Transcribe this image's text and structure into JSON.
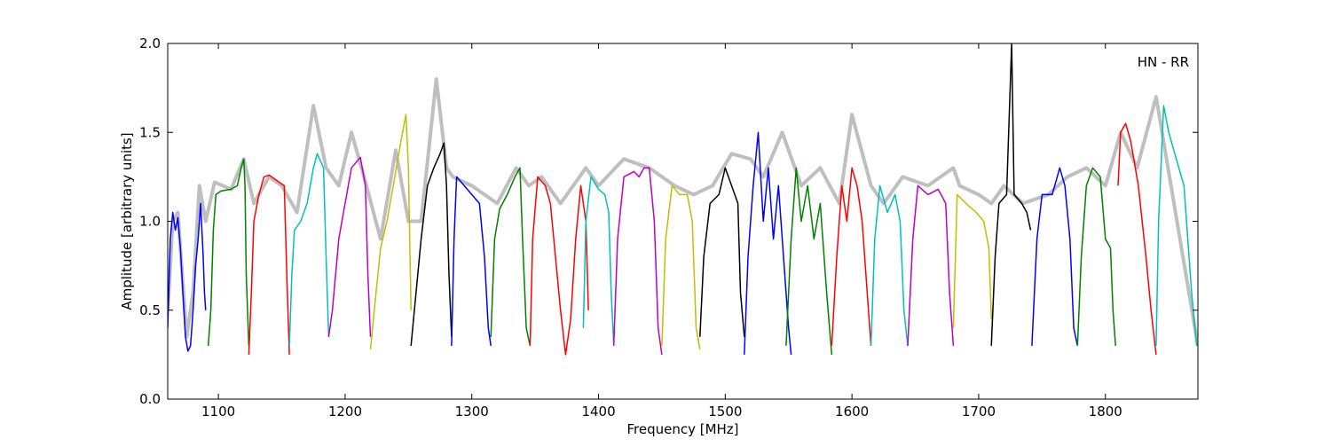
{
  "chart_data": {
    "type": "line",
    "title": "",
    "annotation": "HN - RR",
    "xlabel": "Frequency [MHz]",
    "ylabel": "Amplitude [arbitrary units]",
    "xlim": [
      1060,
      1873
    ],
    "ylim": [
      0.0,
      2.0
    ],
    "xticks": [
      1100,
      1200,
      1300,
      1400,
      1500,
      1600,
      1700,
      1800
    ],
    "yticks": [
      0.0,
      0.5,
      1.0,
      1.5,
      2.0
    ],
    "xtick_labels": [
      "1100",
      "1200",
      "1300",
      "1400",
      "1500",
      "1600",
      "1700",
      "1800"
    ],
    "ytick_labels": [
      "0.0",
      "0.5",
      "1.0",
      "1.5",
      "2.0"
    ],
    "grid": false,
    "colors": {
      "background_trace": "#bfbfbf",
      "blue": "#0000ff",
      "green": "#008000",
      "red": "#ff0000",
      "cyan": "#00bfbf",
      "magenta": "#bf00bf",
      "olive": "#bfbf00",
      "black": "#000000"
    },
    "background_trace": [
      [
        1060,
        0.5
      ],
      [
        1064,
        1.0
      ],
      [
        1068,
        1.05
      ],
      [
        1075,
        0.35
      ],
      [
        1080,
        0.6
      ],
      [
        1085,
        1.2
      ],
      [
        1090,
        1.0
      ],
      [
        1097,
        1.22
      ],
      [
        1110,
        1.18
      ],
      [
        1120,
        1.35
      ],
      [
        1128,
        1.1
      ],
      [
        1140,
        1.25
      ],
      [
        1150,
        1.2
      ],
      [
        1162,
        1.05
      ],
      [
        1175,
        1.65
      ],
      [
        1185,
        1.3
      ],
      [
        1195,
        1.2
      ],
      [
        1205,
        1.5
      ],
      [
        1215,
        1.25
      ],
      [
        1228,
        0.9
      ],
      [
        1240,
        1.4
      ],
      [
        1250,
        1.0
      ],
      [
        1260,
        1.0
      ],
      [
        1272,
        1.8
      ],
      [
        1280,
        1.3
      ],
      [
        1285,
        1.25
      ],
      [
        1300,
        1.2
      ],
      [
        1310,
        1.15
      ],
      [
        1320,
        1.1
      ],
      [
        1335,
        1.3
      ],
      [
        1345,
        1.2
      ],
      [
        1355,
        1.25
      ],
      [
        1370,
        1.1
      ],
      [
        1390,
        1.3
      ],
      [
        1400,
        1.2
      ],
      [
        1420,
        1.35
      ],
      [
        1440,
        1.3
      ],
      [
        1460,
        1.2
      ],
      [
        1475,
        1.15
      ],
      [
        1490,
        1.2
      ],
      [
        1505,
        1.38
      ],
      [
        1520,
        1.35
      ],
      [
        1530,
        1.25
      ],
      [
        1545,
        1.5
      ],
      [
        1560,
        1.2
      ],
      [
        1575,
        1.3
      ],
      [
        1590,
        1.1
      ],
      [
        1600,
        1.6
      ],
      [
        1615,
        1.2
      ],
      [
        1625,
        1.1
      ],
      [
        1640,
        1.25
      ],
      [
        1660,
        1.2
      ],
      [
        1680,
        1.3
      ],
      [
        1685,
        1.2
      ],
      [
        1700,
        1.15
      ],
      [
        1710,
        1.1
      ],
      [
        1720,
        1.2
      ],
      [
        1735,
        1.1
      ],
      [
        1755,
        1.15
      ],
      [
        1770,
        1.25
      ],
      [
        1785,
        1.3
      ],
      [
        1800,
        1.2
      ],
      [
        1812,
        1.5
      ],
      [
        1825,
        1.3
      ],
      [
        1840,
        1.7
      ],
      [
        1873,
        0.3
      ]
    ],
    "series": [
      {
        "color": "blue",
        "points": [
          [
            1060,
            0.4
          ],
          [
            1062,
            0.9
          ],
          [
            1064,
            1.05
          ],
          [
            1066,
            0.95
          ],
          [
            1068,
            1.02
          ],
          [
            1070,
            0.85
          ],
          [
            1072,
            0.6
          ],
          [
            1074,
            0.35
          ],
          [
            1076,
            0.27
          ],
          [
            1078,
            0.3
          ],
          [
            1080,
            0.5
          ],
          [
            1082,
            0.75
          ],
          [
            1084,
            0.9
          ],
          [
            1086,
            1.1
          ],
          [
            1088,
            0.8
          ],
          [
            1089,
            0.6
          ],
          [
            1090,
            0.5
          ]
        ]
      },
      {
        "color": "green",
        "points": [
          [
            1092,
            0.3
          ],
          [
            1094,
            0.5
          ],
          [
            1096,
            0.95
          ],
          [
            1098,
            1.15
          ],
          [
            1102,
            1.17
          ],
          [
            1110,
            1.18
          ],
          [
            1115,
            1.2
          ],
          [
            1118,
            1.3
          ],
          [
            1120,
            1.35
          ],
          [
            1121,
            1.2
          ],
          [
            1122,
            0.7
          ],
          [
            1124,
            0.3
          ]
        ]
      },
      {
        "color": "red",
        "points": [
          [
            1124,
            0.25
          ],
          [
            1126,
            0.6
          ],
          [
            1128,
            1.0
          ],
          [
            1132,
            1.15
          ],
          [
            1136,
            1.25
          ],
          [
            1140,
            1.26
          ],
          [
            1146,
            1.23
          ],
          [
            1152,
            1.2
          ],
          [
            1154,
            0.7
          ],
          [
            1156,
            0.25
          ]
        ]
      },
      {
        "color": "cyan",
        "points": [
          [
            1156,
            0.3
          ],
          [
            1158,
            0.7
          ],
          [
            1160,
            0.95
          ],
          [
            1165,
            1.0
          ],
          [
            1170,
            1.1
          ],
          [
            1175,
            1.3
          ],
          [
            1178,
            1.38
          ],
          [
            1183,
            1.3
          ],
          [
            1185,
            0.8
          ],
          [
            1187,
            0.35
          ]
        ]
      },
      {
        "color": "magenta",
        "points": [
          [
            1187,
            0.35
          ],
          [
            1190,
            0.5
          ],
          [
            1195,
            0.9
          ],
          [
            1200,
            1.1
          ],
          [
            1205,
            1.3
          ],
          [
            1212,
            1.36
          ],
          [
            1216,
            1.2
          ],
          [
            1218,
            0.7
          ],
          [
            1220,
            0.35
          ]
        ]
      },
      {
        "color": "olive",
        "points": [
          [
            1220,
            0.28
          ],
          [
            1223,
            0.5
          ],
          [
            1228,
            0.85
          ],
          [
            1233,
            1.0
          ],
          [
            1238,
            1.2
          ],
          [
            1244,
            1.45
          ],
          [
            1248,
            1.6
          ],
          [
            1250,
            1.3
          ],
          [
            1252,
            0.5
          ]
        ]
      },
      {
        "color": "black",
        "points": [
          [
            1252,
            0.3
          ],
          [
            1256,
            0.6
          ],
          [
            1260,
            0.9
          ],
          [
            1265,
            1.2
          ],
          [
            1270,
            1.3
          ],
          [
            1275,
            1.38
          ],
          [
            1278,
            1.44
          ],
          [
            1280,
            1.2
          ],
          [
            1282,
            0.7
          ],
          [
            1284,
            0.35
          ]
        ]
      },
      {
        "color": "blue",
        "points": [
          [
            1284,
            0.3
          ],
          [
            1286,
            0.9
          ],
          [
            1288,
            1.25
          ],
          [
            1294,
            1.2
          ],
          [
            1300,
            1.15
          ],
          [
            1306,
            1.1
          ],
          [
            1310,
            0.8
          ],
          [
            1313,
            0.4
          ],
          [
            1315,
            0.3
          ]
        ]
      },
      {
        "color": "green",
        "points": [
          [
            1315,
            0.35
          ],
          [
            1318,
            0.9
          ],
          [
            1322,
            1.07
          ],
          [
            1328,
            1.15
          ],
          [
            1334,
            1.25
          ],
          [
            1338,
            1.3
          ],
          [
            1340,
            0.9
          ],
          [
            1343,
            0.4
          ],
          [
            1346,
            0.3
          ]
        ]
      },
      {
        "color": "red",
        "points": [
          [
            1346,
            0.3
          ],
          [
            1348,
            0.9
          ],
          [
            1352,
            1.25
          ],
          [
            1358,
            1.2
          ],
          [
            1362,
            1.1
          ],
          [
            1366,
            0.8
          ],
          [
            1370,
            0.5
          ],
          [
            1374,
            0.25
          ],
          [
            1378,
            0.45
          ],
          [
            1382,
            0.9
          ],
          [
            1386,
            1.2
          ],
          [
            1390,
            1.0
          ],
          [
            1392,
            0.5
          ]
        ]
      },
      {
        "color": "cyan",
        "points": [
          [
            1388,
            0.4
          ],
          [
            1390,
            1.0
          ],
          [
            1394,
            1.25
          ],
          [
            1400,
            1.18
          ],
          [
            1405,
            1.15
          ],
          [
            1408,
            1.05
          ],
          [
            1410,
            0.6
          ],
          [
            1412,
            0.3
          ]
        ]
      },
      {
        "color": "magenta",
        "points": [
          [
            1412,
            0.3
          ],
          [
            1415,
            0.9
          ],
          [
            1420,
            1.25
          ],
          [
            1428,
            1.28
          ],
          [
            1432,
            1.25
          ],
          [
            1436,
            1.3
          ],
          [
            1440,
            1.3
          ],
          [
            1444,
            1.0
          ],
          [
            1447,
            0.4
          ],
          [
            1450,
            0.25
          ]
        ]
      },
      {
        "color": "olive",
        "points": [
          [
            1450,
            0.3
          ],
          [
            1453,
            0.9
          ],
          [
            1458,
            1.2
          ],
          [
            1464,
            1.15
          ],
          [
            1470,
            1.15
          ],
          [
            1474,
            1.0
          ],
          [
            1477,
            0.4
          ],
          [
            1480,
            0.28
          ]
        ]
      },
      {
        "color": "black",
        "points": [
          [
            1480,
            0.35
          ],
          [
            1483,
            0.8
          ],
          [
            1488,
            1.1
          ],
          [
            1495,
            1.15
          ],
          [
            1500,
            1.3
          ],
          [
            1505,
            1.2
          ],
          [
            1510,
            1.1
          ],
          [
            1512,
            0.6
          ],
          [
            1515,
            0.35
          ]
        ]
      },
      {
        "color": "blue",
        "points": [
          [
            1515,
            0.25
          ],
          [
            1518,
            0.8
          ],
          [
            1522,
            1.2
          ],
          [
            1526,
            1.5
          ],
          [
            1530,
            1.0
          ],
          [
            1534,
            1.3
          ],
          [
            1538,
            0.9
          ],
          [
            1542,
            1.2
          ],
          [
            1546,
            0.8
          ],
          [
            1550,
            0.4
          ],
          [
            1552,
            0.25
          ]
        ]
      },
      {
        "color": "green",
        "points": [
          [
            1548,
            0.3
          ],
          [
            1552,
            0.9
          ],
          [
            1556,
            1.3
          ],
          [
            1560,
            1.0
          ],
          [
            1565,
            1.2
          ],
          [
            1570,
            0.9
          ],
          [
            1575,
            1.1
          ],
          [
            1580,
            0.6
          ],
          [
            1584,
            0.25
          ]
        ]
      },
      {
        "color": "red",
        "points": [
          [
            1584,
            0.3
          ],
          [
            1588,
            0.8
          ],
          [
            1592,
            1.2
          ],
          [
            1596,
            1.0
          ],
          [
            1600,
            1.3
          ],
          [
            1604,
            1.2
          ],
          [
            1608,
            1.0
          ],
          [
            1612,
            0.6
          ],
          [
            1615,
            0.3
          ]
        ]
      },
      {
        "color": "cyan",
        "points": [
          [
            1615,
            0.3
          ],
          [
            1618,
            0.9
          ],
          [
            1622,
            1.2
          ],
          [
            1628,
            1.05
          ],
          [
            1634,
            1.15
          ],
          [
            1638,
            1.0
          ],
          [
            1641,
            0.5
          ],
          [
            1644,
            0.3
          ]
        ]
      },
      {
        "color": "magenta",
        "points": [
          [
            1644,
            0.3
          ],
          [
            1648,
            0.9
          ],
          [
            1652,
            1.2
          ],
          [
            1660,
            1.15
          ],
          [
            1668,
            1.18
          ],
          [
            1674,
            1.1
          ],
          [
            1677,
            0.6
          ],
          [
            1680,
            0.3
          ]
        ]
      },
      {
        "color": "olive",
        "points": [
          [
            1680,
            0.4
          ],
          [
            1683,
            1.15
          ],
          [
            1690,
            1.1
          ],
          [
            1698,
            1.05
          ],
          [
            1704,
            1.0
          ],
          [
            1708,
            0.85
          ],
          [
            1710,
            0.45
          ]
        ]
      },
      {
        "color": "black",
        "points": [
          [
            1710,
            0.3
          ],
          [
            1713,
            0.8
          ],
          [
            1716,
            1.1
          ],
          [
            1722,
            1.15
          ],
          [
            1726,
            2.0
          ],
          [
            1728,
            1.15
          ],
          [
            1734,
            1.1
          ],
          [
            1738,
            1.05
          ],
          [
            1741,
            0.95
          ]
        ]
      },
      {
        "color": "blue",
        "points": [
          [
            1742,
            0.3
          ],
          [
            1746,
            0.9
          ],
          [
            1750,
            1.15
          ],
          [
            1758,
            1.15
          ],
          [
            1764,
            1.3
          ],
          [
            1768,
            1.2
          ],
          [
            1772,
            0.9
          ],
          [
            1775,
            0.4
          ],
          [
            1778,
            0.3
          ]
        ]
      },
      {
        "color": "green",
        "points": [
          [
            1778,
            0.3
          ],
          [
            1781,
            0.8
          ],
          [
            1785,
            1.2
          ],
          [
            1790,
            1.3
          ],
          [
            1796,
            1.25
          ],
          [
            1800,
            0.9
          ],
          [
            1804,
            0.85
          ],
          [
            1806,
            0.5
          ],
          [
            1808,
            0.3
          ]
        ]
      },
      {
        "color": "red",
        "points": [
          [
            1810,
            1.2
          ],
          [
            1812,
            1.5
          ],
          [
            1816,
            1.55
          ],
          [
            1820,
            1.45
          ],
          [
            1826,
            1.2
          ],
          [
            1832,
            0.8
          ],
          [
            1836,
            0.5
          ],
          [
            1840,
            0.25
          ]
        ]
      },
      {
        "color": "cyan",
        "points": [
          [
            1840,
            0.3
          ],
          [
            1842,
            1.0
          ],
          [
            1846,
            1.65
          ],
          [
            1850,
            1.5
          ],
          [
            1856,
            1.35
          ],
          [
            1862,
            1.2
          ],
          [
            1868,
            0.6
          ],
          [
            1872,
            0.3
          ]
        ]
      }
    ]
  }
}
